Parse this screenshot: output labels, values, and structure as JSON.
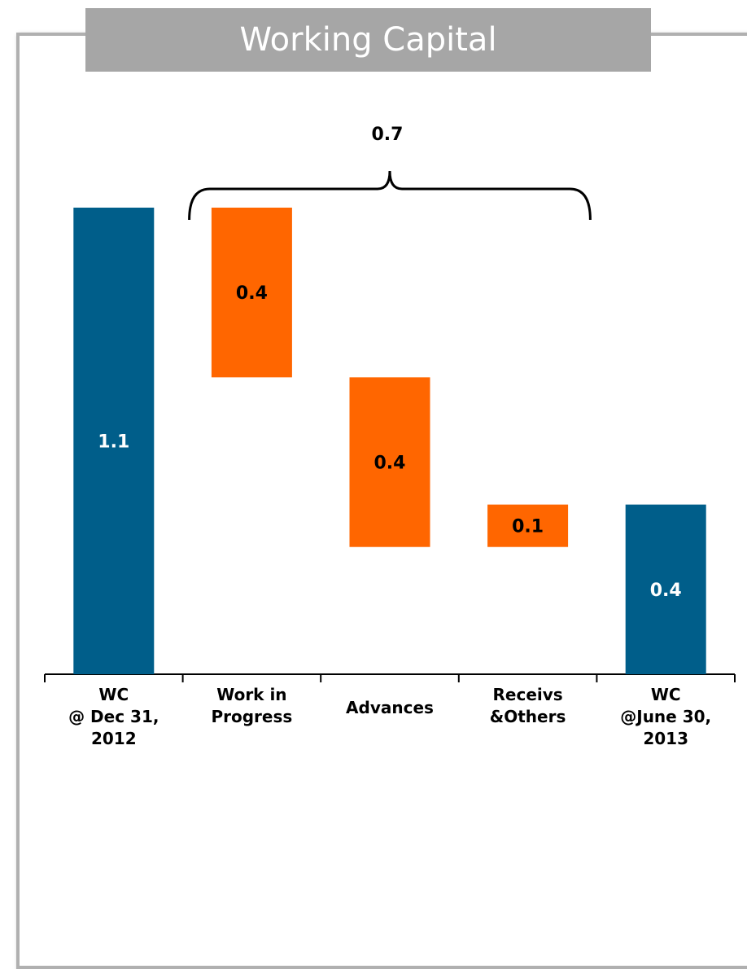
{
  "chart_data": {
    "type": "waterfall",
    "title": "Working Capital",
    "categories": [
      "WC\n@ Dec 31,\n2012",
      "Work in\nProgress",
      "Advances",
      "Receivs\n&Others",
      "WC\n@June 30,\n2013"
    ],
    "values": [
      1.1,
      -0.4,
      -0.4,
      0.1,
      0.4
    ],
    "value_labels": [
      "1.1",
      "0.4",
      "0.4",
      "0.1",
      "0.4"
    ],
    "measure": [
      "absolute",
      "relative",
      "relative",
      "relative",
      "total"
    ],
    "colors": {
      "total": "#005e8a",
      "change": "#ff6600"
    },
    "label_colors": {
      "total": "#ffffff",
      "change": "#000000"
    },
    "annotation": "0.7"
  }
}
